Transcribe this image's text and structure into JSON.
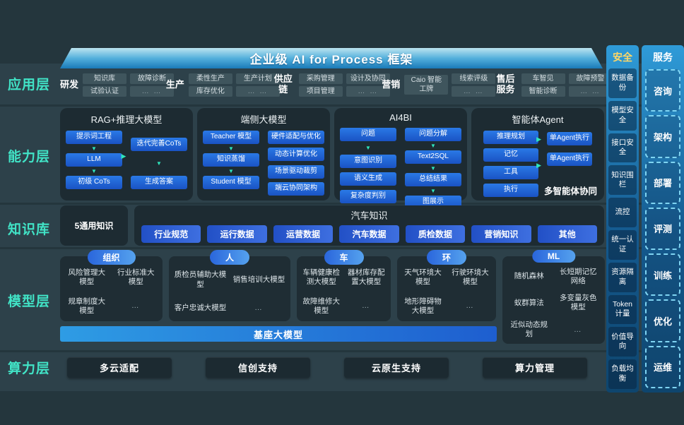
{
  "banner": {
    "title": "企业级 AI for Process 框架"
  },
  "layers": {
    "app": {
      "label": "应用层"
    },
    "capability": {
      "label": "能力层"
    },
    "knowledge": {
      "label": "知识库"
    },
    "model": {
      "label": "模型层"
    },
    "compute": {
      "label": "算力层"
    }
  },
  "app": {
    "groups": [
      {
        "label": "研发",
        "cols": [
          [
            "知识库",
            "试验认证"
          ],
          [
            "故障诊断",
            "… …"
          ]
        ]
      },
      {
        "label": "生产",
        "cols": [
          [
            "柔性生产",
            "库存优化"
          ],
          [
            "生产计划",
            "… …"
          ]
        ]
      },
      {
        "label": "供应链",
        "cols": [
          [
            "采购管理",
            "项目管理"
          ],
          [
            "设计及协同",
            "… …"
          ]
        ]
      },
      {
        "label": "营销",
        "cols": [
          [
            "Caio 智能工牌"
          ],
          [
            "线索评级",
            "… …"
          ]
        ]
      },
      {
        "label": "售后服务",
        "cols": [
          [
            "车智见",
            "智能诊断"
          ],
          [
            "故障预警",
            "… …"
          ]
        ]
      }
    ]
  },
  "capability": {
    "panels": [
      {
        "title": "RAG+推理大模型",
        "cols": [
          {
            "arrows": "all",
            "items": [
              "提示词工程",
              "LLM",
              "初级 CoTs"
            ]
          },
          {
            "arrows": "all",
            "items": [
              "迭代完善CoTs",
              "生成答案"
            ]
          }
        ]
      },
      {
        "title": "端侧大模型",
        "cols": [
          {
            "arrows": "all",
            "items": [
              "Teacher 模型",
              "知识蒸馏",
              "Student 模型"
            ]
          },
          {
            "arrows": "none",
            "items": [
              "硬件适配与优化",
              "动态计算优化",
              "场景驱动裁剪",
              "端云协同架构"
            ]
          }
        ]
      },
      {
        "title": "AI4BI",
        "cols": [
          {
            "arrows": "first",
            "items": [
              "问题",
              "意图识别",
              "语义生成",
              "复杂度判别"
            ]
          },
          {
            "arrows": "all",
            "items": [
              "问题分解",
              "Text2SQL",
              "总结结果",
              "图展示"
            ]
          }
        ]
      },
      {
        "title": "智能体Agent",
        "cols": [
          {
            "arrows": "none",
            "items": [
              "推理规划",
              "记忆",
              "工具",
              "执行"
            ]
          },
          {
            "arrows": "none",
            "items": [
              "单Agent执行",
              "单Agent执行"
            ]
          }
        ],
        "footer": "多智能体协同"
      }
    ],
    "down_arrow_icon": "▼",
    "right_arrow_icon": "▶"
  },
  "knowledge": {
    "general": "5通用知识",
    "auto_title": "汽车知识",
    "pills": [
      "行业规范",
      "运行数据",
      "运营数据",
      "汽车数据",
      "质检数据",
      "营销知识",
      "其他"
    ]
  },
  "model": {
    "base_bar": "基座大模型",
    "panels": [
      {
        "pill": "组织",
        "items": [
          "风险管理大模型",
          "行业标准大模型",
          "规章制度大模型",
          "…"
        ]
      },
      {
        "pill": "人",
        "items": [
          "质检员辅助大模型",
          "销售培训大模型",
          "客户忠诚大模型",
          "…"
        ]
      },
      {
        "pill": "车",
        "items": [
          "车辆健康检测大模型",
          "器材库存配置大模型",
          "故障维修大模型",
          "…"
        ]
      },
      {
        "pill": "环",
        "items": [
          "天气环境大模型",
          "行驶环境大模型",
          "地形障碍物大模型",
          "…"
        ]
      },
      {
        "pill": "ML",
        "items": [
          "随机森林",
          "长短期记忆网络",
          "蚁群算法",
          "多变量灰色模型",
          "近似动态规划",
          "…"
        ]
      }
    ]
  },
  "compute": {
    "items": [
      "多云适配",
      "信创支持",
      "云原生支持",
      "算力管理"
    ]
  },
  "security": {
    "title": "安全",
    "items": [
      "数据备份",
      "模型安全",
      "接口安全",
      "知识围栏",
      "流控",
      "统一认证",
      "资源隔离",
      "Token计量",
      "价值导向",
      "负载均衡"
    ]
  },
  "service": {
    "title": "服务",
    "items": [
      "咨询",
      "架构",
      "部署",
      "评测",
      "训练",
      "优化",
      "运维"
    ]
  },
  "colors": {
    "accent_cyan": "#41e3c6",
    "arrow_cyan": "#2fe6bd",
    "box_blue": "#1e63d6",
    "banner_blue": "#1a7ab8",
    "panel_dark": "#1d2b32",
    "security_gold": "#ffd766",
    "side_column_blue": "#14598e",
    "background": "#24363d"
  }
}
